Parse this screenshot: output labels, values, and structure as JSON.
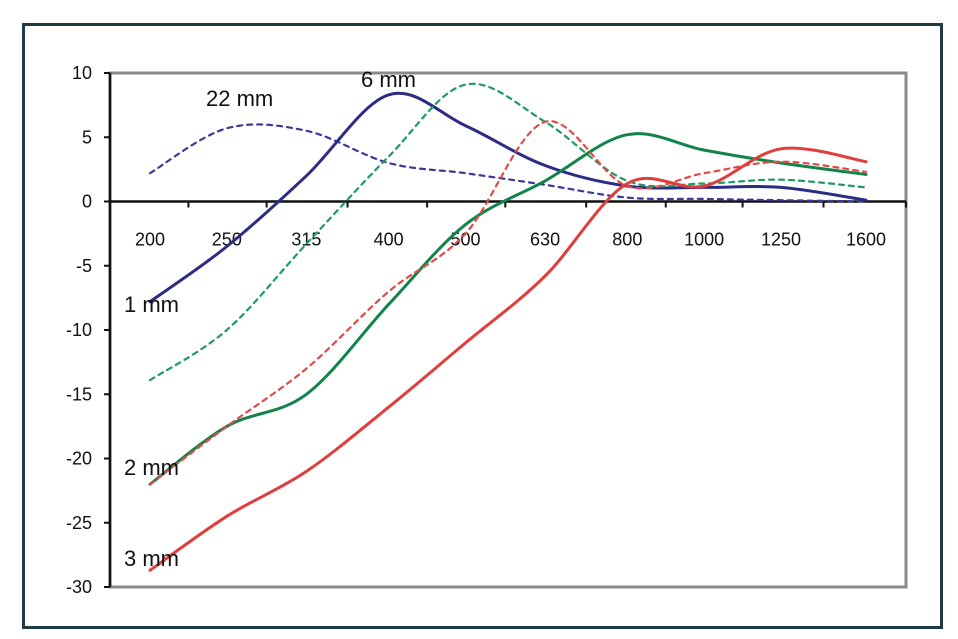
{
  "chart_data": {
    "type": "line",
    "title": "",
    "xlabel": "",
    "ylabel": "",
    "categories": [
      "200",
      "250",
      "315",
      "400",
      "500",
      "630",
      "800",
      "1000",
      "1250",
      "1600"
    ],
    "x_scale": "log",
    "ylim": [
      -30,
      10
    ],
    "yticks": [
      10,
      5,
      0,
      -5,
      -10,
      -15,
      -20,
      -25,
      -30
    ],
    "grid": false,
    "series": [
      {
        "name": "22 mm",
        "style": "dashed",
        "color": "#3a3a9a",
        "x": [
          200,
          250,
          315,
          400,
          500,
          630,
          800,
          1000,
          1250,
          1600
        ],
        "values": [
          2.2,
          5.7,
          5.5,
          3.0,
          2.2,
          1.3,
          0.3,
          0.2,
          0.1,
          0.0
        ]
      },
      {
        "name": "6 mm",
        "style": "solid",
        "color": "#2c2c84",
        "x": [
          200,
          250,
          315,
          400,
          500,
          630,
          800,
          1000,
          1250,
          1600
        ],
        "values": [
          -7.8,
          -3.5,
          2.0,
          8.3,
          5.9,
          2.8,
          1.2,
          1.1,
          1.1,
          0.1
        ]
      },
      {
        "name": "1 mm",
        "style": "dashed",
        "color": "#1e9b60",
        "x": [
          200,
          250,
          315,
          400,
          500,
          630,
          800,
          1000,
          1250,
          1600
        ],
        "values": [
          -13.9,
          -10.0,
          -3.3,
          3.5,
          9.1,
          6.2,
          1.6,
          1.4,
          1.7,
          1.1
        ]
      },
      {
        "name": "2 mm",
        "style": "solid",
        "color": "#12844a",
        "x": [
          200,
          250,
          315,
          400,
          500,
          630,
          800,
          1000,
          1250,
          1600
        ],
        "values": [
          -22.0,
          -17.5,
          -15.0,
          -8.0,
          -1.8,
          1.6,
          5.2,
          4.0,
          3.0,
          2.1
        ]
      },
      {
        "name": "2 mm (dashed)",
        "style": "dashed",
        "color": "#e04a4a",
        "x": [
          200,
          250,
          315,
          400,
          500,
          630,
          800,
          1000,
          1250,
          1600
        ],
        "values": [
          -22.0,
          -17.5,
          -13.0,
          -7.0,
          -2.5,
          6.2,
          1.2,
          2.2,
          3.1,
          2.3
        ]
      },
      {
        "name": "3 mm",
        "style": "solid",
        "color": "#e23d3d",
        "x": [
          200,
          250,
          315,
          400,
          500,
          630,
          800,
          1000,
          1250,
          1600
        ],
        "values": [
          -28.7,
          -24.5,
          -21.0,
          -16.0,
          -11.0,
          -5.8,
          1.4,
          1.2,
          4.1,
          3.1
        ]
      }
    ],
    "annotations": [
      "22 mm",
      "6 mm",
      "1 mm",
      "2 mm",
      "3 mm"
    ]
  }
}
